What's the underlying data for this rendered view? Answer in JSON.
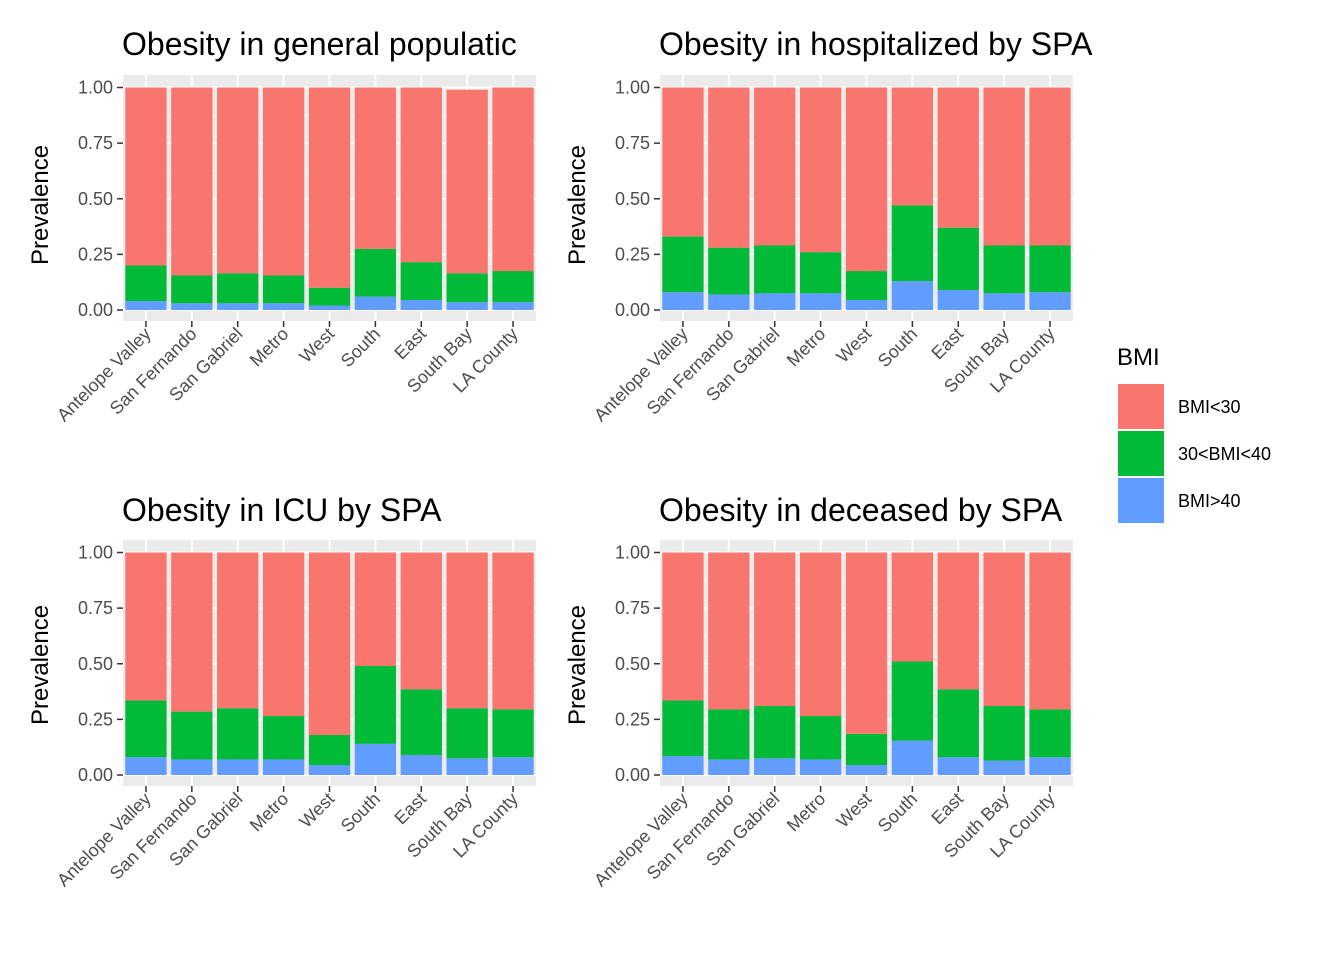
{
  "legend": {
    "title": "BMI",
    "items": [
      {
        "label": "BMI<30",
        "color": "#F8766D"
      },
      {
        "label": "30<BMI<40",
        "color": "#00BA38"
      },
      {
        "label": "BMI>40",
        "color": "#619CFF"
      }
    ]
  },
  "chart_data": [
    {
      "type": "bar",
      "stacked": true,
      "title": "Obesity in general populatic",
      "ylabel": "Prevalence",
      "ylim": [
        0,
        1
      ],
      "yticks": [
        "0.00",
        "0.25",
        "0.50",
        "0.75",
        "1.00"
      ],
      "categories": [
        "Antelope Valley",
        "San Fernando",
        "San Gabriel",
        "Metro",
        "West",
        "South",
        "East",
        "South Bay",
        "LA County"
      ],
      "series": [
        {
          "name": "BMI>40",
          "values": [
            0.04,
            0.03,
            0.03,
            0.03,
            0.02,
            0.06,
            0.045,
            0.035,
            0.035
          ]
        },
        {
          "name": "30<BMI<40",
          "values": [
            0.16,
            0.125,
            0.135,
            0.125,
            0.08,
            0.215,
            0.17,
            0.13,
            0.14
          ]
        },
        {
          "name": "BMI<30",
          "values": [
            0.8,
            0.845,
            0.835,
            0.845,
            0.9,
            0.725,
            0.785,
            0.825,
            0.825
          ]
        }
      ]
    },
    {
      "type": "bar",
      "stacked": true,
      "title": "Obesity in hospitalized by SPA",
      "ylabel": "Prevalence",
      "ylim": [
        0,
        1
      ],
      "yticks": [
        "0.00",
        "0.25",
        "0.50",
        "0.75",
        "1.00"
      ],
      "categories": [
        "Antelope Valley",
        "San Fernando",
        "San Gabriel",
        "Metro",
        "West",
        "South",
        "East",
        "South Bay",
        "LA County"
      ],
      "series": [
        {
          "name": "BMI>40",
          "values": [
            0.08,
            0.07,
            0.075,
            0.075,
            0.045,
            0.13,
            0.09,
            0.075,
            0.08
          ]
        },
        {
          "name": "30<BMI<40",
          "values": [
            0.25,
            0.21,
            0.215,
            0.185,
            0.13,
            0.34,
            0.28,
            0.215,
            0.21
          ]
        },
        {
          "name": "BMI<30",
          "values": [
            0.67,
            0.72,
            0.71,
            0.74,
            0.825,
            0.53,
            0.63,
            0.71,
            0.71
          ]
        }
      ]
    },
    {
      "type": "bar",
      "stacked": true,
      "title": "Obesity in ICU by SPA",
      "ylabel": "Prevalence",
      "ylim": [
        0,
        1
      ],
      "yticks": [
        "0.00",
        "0.25",
        "0.50",
        "0.75",
        "1.00"
      ],
      "categories": [
        "Antelope Valley",
        "San Fernando",
        "San Gabriel",
        "Metro",
        "West",
        "South",
        "East",
        "South Bay",
        "LA County"
      ],
      "series": [
        {
          "name": "BMI>40",
          "values": [
            0.08,
            0.07,
            0.07,
            0.07,
            0.045,
            0.14,
            0.09,
            0.075,
            0.08
          ]
        },
        {
          "name": "30<BMI<40",
          "values": [
            0.255,
            0.215,
            0.23,
            0.195,
            0.135,
            0.35,
            0.295,
            0.225,
            0.215
          ]
        },
        {
          "name": "BMI<30",
          "values": [
            0.665,
            0.715,
            0.7,
            0.735,
            0.82,
            0.51,
            0.615,
            0.7,
            0.705
          ]
        }
      ]
    },
    {
      "type": "bar",
      "stacked": true,
      "title": "Obesity in deceased by SPA",
      "ylabel": "Prevalence",
      "ylim": [
        0,
        1
      ],
      "yticks": [
        "0.00",
        "0.25",
        "0.50",
        "0.75",
        "1.00"
      ],
      "categories": [
        "Antelope Valley",
        "San Fernando",
        "San Gabriel",
        "Metro",
        "West",
        "South",
        "East",
        "South Bay",
        "LA County"
      ],
      "series": [
        {
          "name": "BMI>40",
          "values": [
            0.085,
            0.07,
            0.075,
            0.07,
            0.045,
            0.155,
            0.08,
            0.065,
            0.08
          ]
        },
        {
          "name": "30<BMI<40",
          "values": [
            0.25,
            0.225,
            0.235,
            0.195,
            0.14,
            0.355,
            0.305,
            0.245,
            0.215
          ]
        },
        {
          "name": "BMI<30",
          "values": [
            0.665,
            0.705,
            0.69,
            0.735,
            0.815,
            0.49,
            0.615,
            0.69,
            0.705
          ]
        }
      ]
    }
  ]
}
